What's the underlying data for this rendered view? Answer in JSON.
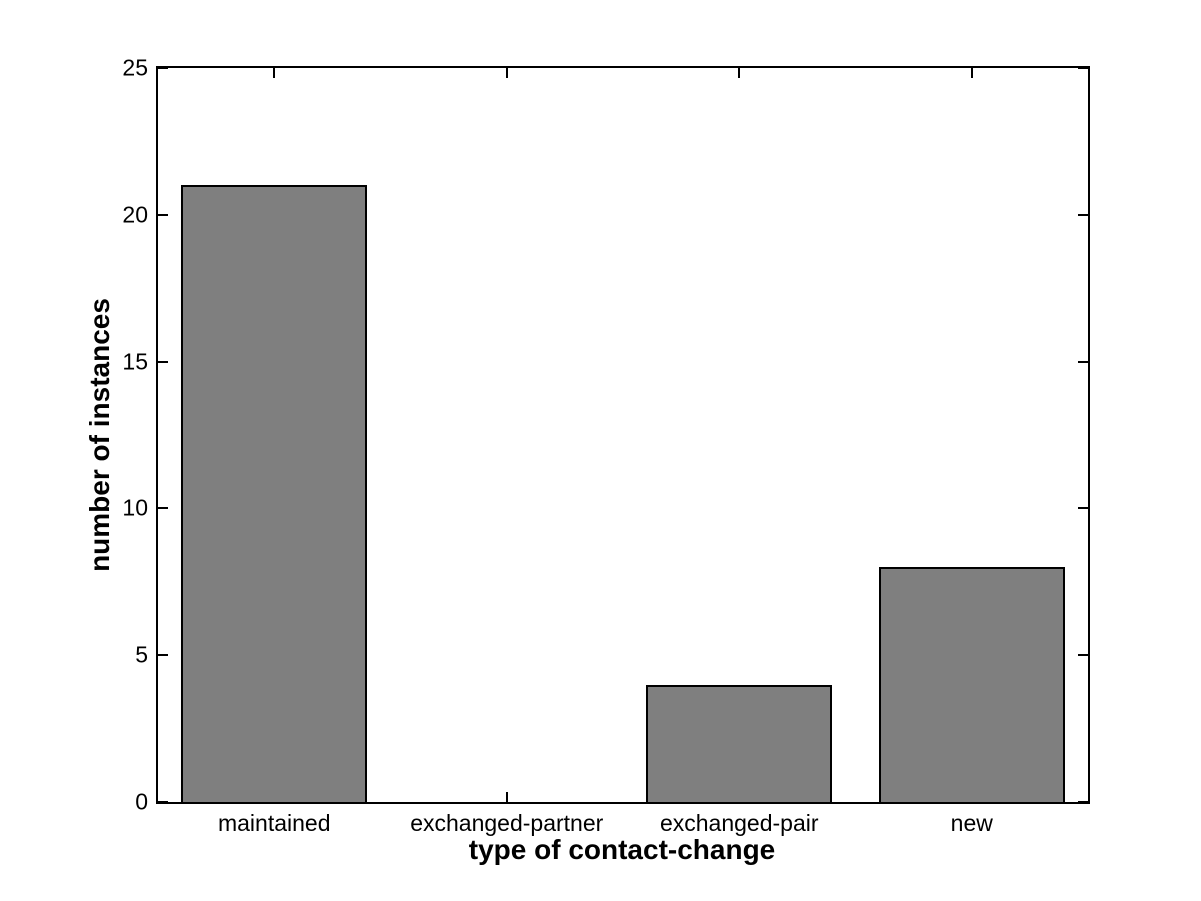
{
  "figure": {
    "background_color": "#ffffff",
    "axis_color": "#000000",
    "text_color": "#000000"
  },
  "chart_data": {
    "type": "bar",
    "title": "",
    "categories": [
      "maintained",
      "exchanged-partner",
      "exchanged-pair",
      "new"
    ],
    "values": [
      21,
      0,
      4,
      8
    ],
    "xlabel": "type of contact-change",
    "ylabel": "number of instances",
    "ylim": [
      0,
      25
    ],
    "yticks": [
      0,
      5,
      10,
      15,
      20,
      25
    ],
    "ytick_labels": [
      "0",
      "5",
      "10",
      "15",
      "20",
      "25"
    ],
    "bar_color": "#7f7f7f",
    "bar_edge_color": "#000000",
    "bar_width_ratio": 0.8,
    "grid": false,
    "legend": null,
    "box": true,
    "tick_direction": "in"
  }
}
